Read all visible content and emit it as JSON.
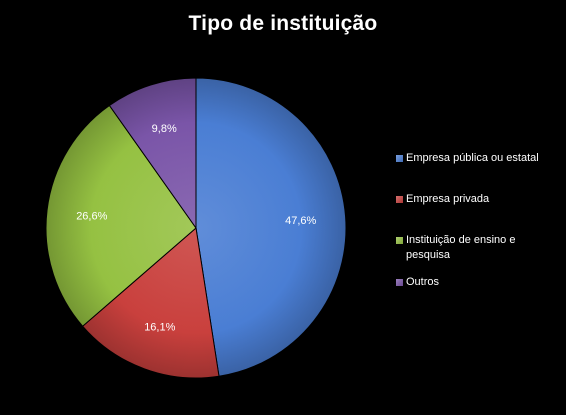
{
  "chart_data": {
    "type": "pie",
    "title": "Tipo de instituição",
    "legend_position": "right",
    "slices": [
      {
        "label": "Empresa pública ou estatal",
        "value": 47.6,
        "value_label": "47,6%",
        "color": "#4a7ed4"
      },
      {
        "label": "Empresa privada",
        "value": 16.1,
        "value_label": "16,1%",
        "color": "#c9403d"
      },
      {
        "label": "Instituição de ensino e pesquisa",
        "value": 26.6,
        "value_label": "26,6%",
        "color": "#95c142"
      },
      {
        "label": "Outros",
        "value": 9.8,
        "value_label": "9,8%",
        "color": "#7a55a8"
      }
    ]
  }
}
